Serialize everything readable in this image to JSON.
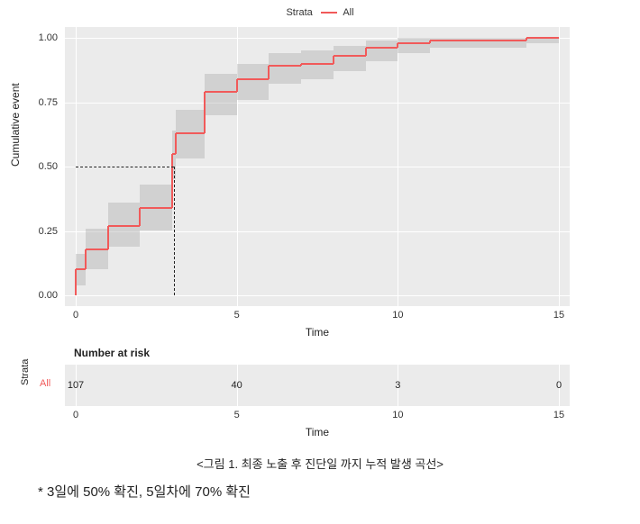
{
  "legend": {
    "title": "Strata",
    "series_label": "All",
    "line_color": "#f15a5a"
  },
  "main_chart": {
    "type": "step-line",
    "ylabel": "Cumulative event",
    "xlabel": "Time",
    "xlim": [
      0,
      15
    ],
    "ylim": [
      0,
      1.0
    ],
    "xticks": [
      0,
      5,
      10,
      15
    ],
    "xtick_labels": [
      "0",
      "5",
      "10",
      "15"
    ],
    "yticks": [
      0,
      0.25,
      0.5,
      0.75,
      1.0
    ],
    "ytick_labels": [
      "0.00",
      "0.25",
      "0.50",
      "0.75",
      "1.00"
    ],
    "background_color": "#ebebeb",
    "grid_color": "#ffffff",
    "line_color": "#f15a5a",
    "line_width": 2,
    "ci_color": "rgba(160,160,160,0.35)",
    "median_line_color": "#222222",
    "step_x": [
      0,
      0.3,
      1,
      2,
      3,
      3.1,
      4,
      5,
      6,
      7,
      8,
      9,
      10,
      11,
      14,
      15
    ],
    "step_y": [
      0,
      0.1,
      0.18,
      0.27,
      0.34,
      0.55,
      0.63,
      0.79,
      0.84,
      0.89,
      0.9,
      0.93,
      0.96,
      0.98,
      0.99,
      1.0
    ],
    "ci_lower": [
      0,
      0.04,
      0.1,
      0.19,
      0.25,
      0.45,
      0.53,
      0.7,
      0.76,
      0.82,
      0.84,
      0.87,
      0.91,
      0.94,
      0.96,
      0.98
    ],
    "ci_upper": [
      0,
      0.16,
      0.26,
      0.36,
      0.43,
      0.64,
      0.72,
      0.86,
      0.9,
      0.94,
      0.95,
      0.97,
      0.99,
      1.0,
      1.0,
      1.0
    ],
    "median_x": 3.05,
    "median_y": 0.5
  },
  "risk_table": {
    "title": "Number at risk",
    "ylabel": "Strata",
    "strata_label": "All",
    "strata_label_color": "#f15a5a",
    "xlabel": "Time",
    "xticks": [
      0,
      5,
      10,
      15
    ],
    "xtick_labels": [
      "0",
      "5",
      "10",
      "15"
    ],
    "values": [
      "107",
      "40",
      "3",
      "0"
    ],
    "background_color": "#ebebeb"
  },
  "caption": "<그림 1. 최종 노출 후 진단일 까지 누적 발생 곡선>",
  "footnote": "* 3일에 50% 확진, 5일차에 70% 확진",
  "label_fontsize": 12,
  "tick_fontsize": 11
}
